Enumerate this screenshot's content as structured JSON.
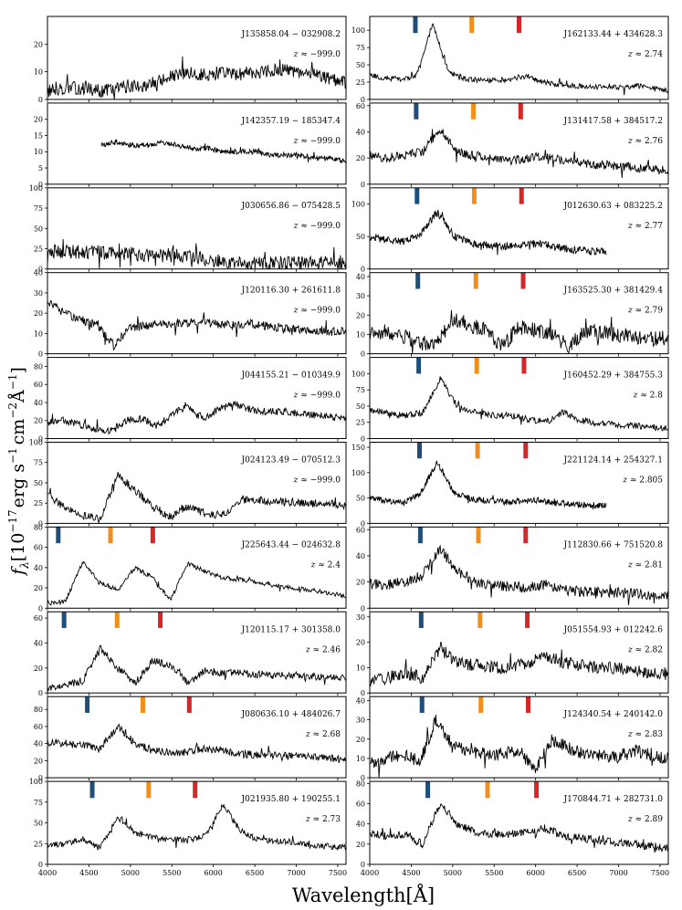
{
  "figure": {
    "xlabel": "Wavelength[Å]",
    "ylabel": "f_λ[10^-17 erg s^-1 cm^-2 Å^-1]",
    "ylabel_parts": {
      "f": "f",
      "lambda": "λ",
      "scale": "[10",
      "scale_exp": "−17",
      "unit": "erg s",
      "unit_exp1": "−1",
      "cm": "cm",
      "unit_exp2": "−2",
      "ang": "Å",
      "unit_exp3": "−1",
      "close": "]"
    },
    "z_prefix": "z ≈ ",
    "line_colors": {
      "a": "#1f4e79",
      "b": "#f28e1c",
      "c": "#d62728"
    },
    "spectrum_color": "#000000"
  },
  "chart_data": [
    {
      "type": "line",
      "column": "left",
      "object": "J135858.04 − 032908.2",
      "z_label": "−999.0",
      "xlim": [
        4000,
        7600
      ],
      "ylim": [
        0,
        30
      ],
      "yticks": [
        0,
        10,
        20
      ],
      "markers": [],
      "level": [
        3,
        4,
        4,
        4,
        3,
        4,
        5,
        5,
        6,
        8,
        9,
        9,
        9,
        10,
        9,
        10,
        10,
        11,
        10,
        9,
        9,
        7,
        6
      ],
      "noise": 2.4,
      "start": 4000,
      "end": 7600
    },
    {
      "type": "line",
      "column": "left",
      "object": "J142357.19 − 185347.4",
      "z_label": "−999.0",
      "xlim": [
        4000,
        7600
      ],
      "ylim": [
        0,
        25
      ],
      "yticks": [
        0,
        5,
        10,
        15,
        20
      ],
      "markers": [],
      "level": [
        12,
        13,
        12,
        12,
        13,
        12,
        11,
        11,
        10,
        10,
        10,
        9,
        9,
        9,
        8,
        8,
        7
      ],
      "noise": 0.8,
      "start": 4650,
      "end": 7600
    },
    {
      "type": "line",
      "column": "left",
      "object": "J030656.86 − 075428.5",
      "z_label": "−999.0",
      "xlim": [
        4000,
        7600
      ],
      "ylim": [
        0,
        100
      ],
      "yticks": [
        0,
        25,
        50,
        75,
        100
      ],
      "markers": [],
      "level": [
        22,
        22,
        21,
        20,
        19,
        18,
        17,
        16,
        14,
        10,
        8,
        7,
        7,
        7,
        7,
        8,
        8
      ],
      "noise": 9,
      "start": 4000,
      "end": 7600
    },
    {
      "type": "line",
      "column": "left",
      "object": "J120116.30 + 261611.8",
      "z_label": "−999.0",
      "xlim": [
        4000,
        7600
      ],
      "ylim": [
        0,
        40
      ],
      "yticks": [
        0,
        10,
        20,
        30,
        40
      ],
      "markers": [],
      "level": [
        26,
        20,
        17,
        14,
        4,
        13,
        14,
        15,
        15,
        16,
        15,
        14,
        15,
        14,
        13,
        12,
        12,
        11,
        11
      ],
      "noise": 2.2,
      "start": 4000,
      "end": 7600
    },
    {
      "type": "line",
      "column": "left",
      "object": "J044155.21 − 010349.9",
      "z_label": "−999.0",
      "xlim": [
        4000,
        7600
      ],
      "ylim": [
        0,
        90
      ],
      "yticks": [
        0,
        20,
        40,
        60,
        80
      ],
      "markers": [],
      "level": [
        18,
        20,
        16,
        10,
        8,
        20,
        22,
        14,
        28,
        36,
        22,
        34,
        38,
        32,
        30,
        30,
        28,
        26,
        24,
        22
      ],
      "noise": 4,
      "start": 4000,
      "end": 7600
    },
    {
      "type": "line",
      "column": "left",
      "object": "J024123.49 − 070512.3",
      "z_label": "−999.0",
      "xlim": [
        4000,
        7600
      ],
      "ylim": [
        0,
        100
      ],
      "yticks": [
        0,
        25,
        50,
        75,
        100
      ],
      "markers": [],
      "level": [
        35,
        20,
        10,
        5,
        60,
        40,
        20,
        8,
        20,
        12,
        10,
        30,
        28,
        27,
        26,
        25,
        24,
        23
      ],
      "noise": 5,
      "start": 4000,
      "end": 7600
    },
    {
      "type": "line",
      "column": "left",
      "object": "J225643.44 − 024632.8",
      "z_label": "2.4",
      "xlim": [
        4000,
        7600
      ],
      "ylim": [
        0,
        80
      ],
      "yticks": [
        0,
        20,
        40,
        60,
        80
      ],
      "markers": [
        4130,
        4760,
        5270
      ],
      "level": [
        5,
        6,
        45,
        25,
        18,
        40,
        30,
        8,
        44,
        36,
        30,
        28,
        26,
        22,
        20,
        18,
        15,
        12
      ],
      "noise": 2.2,
      "start": 4000,
      "end": 7600
    },
    {
      "type": "line",
      "column": "left",
      "object": "J120115.17 + 301358.0",
      "z_label": "2.46",
      "xlim": [
        4000,
        7600
      ],
      "ylim": [
        0,
        65
      ],
      "yticks": [
        0,
        20,
        40,
        60
      ],
      "markers": [
        4200,
        4840,
        5360
      ],
      "level": [
        4,
        6,
        10,
        36,
        20,
        8,
        26,
        22,
        8,
        18,
        16,
        16,
        15,
        14,
        14,
        13,
        13,
        12
      ],
      "noise": 3,
      "start": 4000,
      "end": 7600
    },
    {
      "type": "line",
      "column": "left",
      "object": "J080636.10 + 484026.7",
      "z_label": "2.68",
      "xlim": [
        4000,
        7600
      ],
      "ylim": [
        0,
        95
      ],
      "yticks": [
        0,
        20,
        40,
        60,
        80
      ],
      "markers": [
        4480,
        5150,
        5710
      ],
      "level": [
        42,
        40,
        38,
        35,
        60,
        40,
        32,
        30,
        30,
        34,
        32,
        28,
        27,
        26,
        25,
        24,
        23,
        22
      ],
      "noise": 4.5,
      "start": 4000,
      "end": 7600
    },
    {
      "type": "line",
      "column": "left",
      "object": "J021935.80 + 190255.1",
      "z_label": "2.73",
      "xlim": [
        4000,
        7600
      ],
      "ylim": [
        0,
        100
      ],
      "yticks": [
        0,
        25,
        50,
        75,
        100
      ],
      "markers": [
        4540,
        5220,
        5780
      ],
      "level": [
        22,
        25,
        30,
        20,
        58,
        38,
        32,
        30,
        30,
        35,
        72,
        40,
        30,
        28,
        27,
        22,
        22,
        20
      ],
      "noise": 3.5,
      "start": 4000,
      "end": 7600
    },
    {
      "type": "line",
      "column": "right",
      "object": "J162133.44 + 434628.3",
      "z_label": "2.74",
      "xlim": [
        4000,
        7600
      ],
      "ylim": [
        0,
        120
      ],
      "yticks": [
        0,
        25,
        50,
        75,
        100
      ],
      "markers": [
        4550,
        5230,
        5800
      ],
      "level": [
        35,
        30,
        30,
        34,
        110,
        40,
        30,
        28,
        27,
        30,
        34,
        25,
        22,
        20,
        18,
        18,
        17,
        20,
        15,
        13
      ],
      "noise": 4,
      "start": 4000,
      "end": 7600
    },
    {
      "type": "line",
      "column": "right",
      "object": "J131417.58 + 384517.2",
      "z_label": "2.76",
      "xlim": [
        4000,
        7600
      ],
      "ylim": [
        0,
        62
      ],
      "yticks": [
        0,
        20,
        40,
        60
      ],
      "markers": [
        4560,
        5250,
        5820
      ],
      "level": [
        22,
        20,
        22,
        25,
        42,
        24,
        22,
        20,
        18,
        20,
        22,
        18,
        16,
        15,
        14,
        13,
        12,
        10
      ],
      "noise": 3.5,
      "start": 4000,
      "end": 7600
    },
    {
      "type": "line",
      "column": "right",
      "object": "J012630.63 + 083225.2",
      "z_label": "2.77",
      "xlim": [
        4000,
        7600
      ],
      "ylim": [
        0,
        125
      ],
      "yticks": [
        0,
        50,
        100
      ],
      "markers": [
        4570,
        5260,
        5830
      ],
      "level": [
        50,
        45,
        42,
        55,
        88,
        50,
        40,
        36,
        34,
        36,
        40,
        34,
        30,
        28,
        26
      ],
      "noise": 6,
      "start": 4000,
      "end": 6850
    },
    {
      "type": "line",
      "column": "right",
      "object": "J163525.30 + 381429.4",
      "z_label": "2.79",
      "xlim": [
        4000,
        7600
      ],
      "ylim": [
        0,
        42
      ],
      "yticks": [
        0,
        10,
        20,
        30,
        40
      ],
      "markers": [
        4580,
        5280,
        5850
      ],
      "level": [
        10,
        12,
        9,
        6,
        4,
        18,
        15,
        12,
        4,
        14,
        12,
        10,
        4,
        12,
        11,
        10,
        9,
        8,
        8
      ],
      "noise": 4,
      "start": 4000,
      "end": 7600
    },
    {
      "type": "line",
      "column": "right",
      "object": "J160452.29 + 384755.3",
      "z_label": "2.8",
      "xlim": [
        4000,
        7600
      ],
      "ylim": [
        0,
        125
      ],
      "yticks": [
        0,
        25,
        50,
        75,
        100
      ],
      "markers": [
        4590,
        5290,
        5860
      ],
      "level": [
        45,
        40,
        35,
        40,
        92,
        50,
        40,
        36,
        35,
        30,
        25,
        40,
        28,
        24,
        22,
        20,
        18,
        16
      ],
      "noise": 5,
      "start": 4000,
      "end": 7600
    },
    {
      "type": "line",
      "column": "right",
      "object": "J221124.14 + 254327.1",
      "z_label": "2.805",
      "xlim": [
        4000,
        7600
      ],
      "ylim": [
        0,
        160
      ],
      "yticks": [
        0,
        50,
        100,
        150
      ],
      "markers": [
        4600,
        5300,
        5880
      ],
      "level": [
        50,
        45,
        40,
        60,
        120,
        60,
        48,
        45,
        42,
        44,
        46,
        40,
        38,
        36,
        35
      ],
      "noise": 6,
      "start": 4000,
      "end": 6850
    },
    {
      "type": "line",
      "column": "right",
      "object": "J112830.66 + 751520.8",
      "z_label": "2.81",
      "xlim": [
        4000,
        7600
      ],
      "ylim": [
        0,
        62
      ],
      "yticks": [
        0,
        20,
        40,
        60
      ],
      "markers": [
        4610,
        5310,
        5880
      ],
      "level": [
        18,
        18,
        20,
        25,
        45,
        28,
        20,
        18,
        16,
        16,
        18,
        14,
        13,
        12,
        12,
        11,
        10,
        10
      ],
      "noise": 4,
      "start": 4000,
      "end": 7600
    },
    {
      "type": "line",
      "column": "right",
      "object": "J051554.93 + 012242.6",
      "z_label": "2.82",
      "xlim": [
        4000,
        7600
      ],
      "ylim": [
        0,
        32
      ],
      "yticks": [
        0,
        10,
        20,
        30
      ],
      "markers": [
        4620,
        5330,
        5900
      ],
      "level": [
        4,
        6,
        8,
        6,
        18,
        12,
        11,
        10,
        10,
        12,
        15,
        12,
        11,
        10,
        10,
        9,
        8,
        8
      ],
      "noise": 2.5,
      "start": 4000,
      "end": 7600
    },
    {
      "type": "line",
      "column": "right",
      "object": "J124340.54 + 240142.0",
      "z_label": "2.83",
      "xlim": [
        4000,
        7600
      ],
      "ylim": [
        0,
        42
      ],
      "yticks": [
        0,
        10,
        20,
        30,
        40
      ],
      "markers": [
        4630,
        5340,
        5910
      ],
      "level": [
        8,
        10,
        12,
        8,
        30,
        16,
        14,
        12,
        12,
        14,
        4,
        20,
        15,
        13,
        12,
        11,
        14,
        12,
        10
      ],
      "noise": 3.5,
      "start": 4000,
      "end": 7600
    },
    {
      "type": "line",
      "column": "right",
      "object": "J170844.71 + 282731.0",
      "z_label": "2.89",
      "xlim": [
        4000,
        7600
      ],
      "ylim": [
        0,
        82
      ],
      "yticks": [
        0,
        20,
        40,
        60,
        80
      ],
      "markers": [
        4700,
        5420,
        6010
      ],
      "level": [
        30,
        28,
        30,
        20,
        60,
        40,
        32,
        30,
        30,
        32,
        36,
        28,
        26,
        24,
        22,
        20,
        18,
        16
      ],
      "noise": 4,
      "start": 4000,
      "end": 7600
    }
  ],
  "xticks": [
    4000,
    4500,
    5000,
    5500,
    6000,
    6500,
    7000,
    7500
  ]
}
